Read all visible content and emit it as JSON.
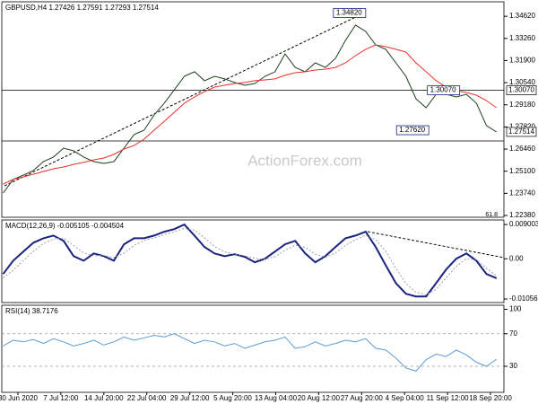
{
  "watermark": "ActionForex.com",
  "chart_data": [
    {
      "type": "line",
      "title": "GBPUSD,H4 1.27426 1.27591 1.27293 1.27514",
      "fib_label": "61.8",
      "xlim": [
        -12,
        362
      ],
      "ylim": [
        1.2227,
        1.3551
      ],
      "yticks": [
        {
          "value": 1.3462,
          "label": "1.34620"
        },
        {
          "value": 1.3326,
          "label": "1.33260"
        },
        {
          "value": 1.319,
          "label": "1.31900"
        },
        {
          "value": 1.3054,
          "label": "1.30540"
        },
        {
          "value": 1.2918,
          "label": "1.29180"
        },
        {
          "value": 1.2782,
          "label": "1.27820"
        },
        {
          "value": 1.2646,
          "label": "1.26460"
        },
        {
          "value": 1.251,
          "label": "1.25100"
        },
        {
          "value": 1.2374,
          "label": "1.23740"
        },
        {
          "value": 1.2238,
          "label": "1.22380"
        }
      ],
      "price_labels": [
        {
          "value": 1.3007,
          "label": "1.30070"
        },
        {
          "value": 1.27514,
          "label": "1.27514"
        }
      ],
      "hlines": [
        1.3007,
        1.2696
      ],
      "annotations": [
        {
          "x": 235,
          "value": 1.3482,
          "label": "1.34820"
        },
        {
          "x": 305,
          "value": 1.3007,
          "label": "1.30070"
        },
        {
          "x": 282,
          "value": 1.2762,
          "label": "1.27620"
        }
      ],
      "x": [
        -11,
        -3.5,
        4,
        11.5,
        19,
        26.5,
        34,
        41.5,
        49,
        56.5,
        64,
        71.5,
        79,
        86.5,
        94,
        101.5,
        109,
        116.5,
        124,
        131.5,
        139,
        146.5,
        154,
        161.5,
        169,
        176.5,
        184,
        191.5,
        199,
        206.5,
        214,
        221.5,
        229,
        236.5,
        244,
        251.5,
        259,
        266.5,
        274,
        281.5,
        289,
        296.5,
        304,
        311.5,
        319,
        326.5,
        334,
        341.5,
        349,
        356.5
      ],
      "series": [
        {
          "color": "#1e3d1e",
          "values": [
            1.2376,
            1.2459,
            1.2486,
            1.2514,
            1.2569,
            1.2597,
            1.2652,
            1.2635,
            1.2597,
            1.2569,
            1.2558,
            1.2569,
            1.2652,
            1.2735,
            1.2762,
            1.2856,
            1.2928,
            1.301,
            1.3093,
            1.3121,
            1.3066,
            1.3093,
            1.3077,
            1.3055,
            1.3038,
            1.3049,
            1.3093,
            1.3121,
            1.3231,
            1.3148,
            1.3121,
            1.3176,
            1.3148,
            1.3203,
            1.3314,
            1.3408,
            1.3369,
            1.3286,
            1.3259,
            1.3176,
            1.3093,
            1.2955,
            1.29,
            1.2983,
            1.2983,
            1.2966,
            1.2983,
            1.2928,
            1.279,
            1.2751
          ]
        },
        {
          "color": "#e8302a",
          "values": [
            1.2431,
            1.2459,
            1.2475,
            1.2492,
            1.2508,
            1.2525,
            1.2536,
            1.2552,
            1.2564,
            1.258,
            1.2591,
            1.2613,
            1.2646,
            1.2668,
            1.2707,
            1.2762,
            1.2817,
            1.2872,
            1.2928,
            1.2966,
            1.2999,
            1.3027,
            1.3038,
            1.3049,
            1.3055,
            1.3066,
            1.3071,
            1.3077,
            1.3099,
            1.3115,
            1.3121,
            1.3132,
            1.3137,
            1.3148,
            1.3176,
            1.322,
            1.3259,
            1.3286,
            1.3275,
            1.3259,
            1.3242,
            1.3176,
            1.3121,
            1.3066,
            1.3027,
            1.3005,
            1.2994,
            1.2977,
            1.2944,
            1.29
          ]
        }
      ]
    },
    {
      "type": "line",
      "title": "MACD(12,26,9) -0.005105 -0.004504",
      "xlim": [
        -12,
        362
      ],
      "ylim": [
        -0.0115,
        0.0102
      ],
      "yticks": [
        0.009003,
        {
          "value": 0,
          "label": "0.00"
        },
        -0.010566
      ],
      "x": [
        -11,
        -3.5,
        4,
        11.5,
        19,
        26.5,
        34,
        41.5,
        49,
        56.5,
        64,
        71.5,
        79,
        86.5,
        94,
        101.5,
        109,
        116.5,
        124,
        131.5,
        139,
        146.5,
        154,
        161.5,
        169,
        176.5,
        184,
        191.5,
        199,
        206.5,
        214,
        221.5,
        229,
        236.5,
        244,
        251.5,
        259,
        266.5,
        274,
        281.5,
        289,
        296.5,
        304,
        311.5,
        319,
        326.5,
        334,
        341.5,
        349,
        356.5
      ],
      "series": [
        {
          "color": "#1a237e",
          "values": [
            -0.004,
            -0.0005,
            0.0019,
            0.0042,
            0.0054,
            0.0061,
            0.0047,
            0.0007,
            -0.0005,
            0.0014,
            0.0007,
            -0.0005,
            0.0038,
            0.0054,
            0.0054,
            0.0061,
            0.0071,
            0.0078,
            0.009,
            0.0061,
            0.0031,
            0.0014,
            0.0007,
            0.0012,
            0.0005,
            -0.0009,
            0,
            0.0019,
            0.0038,
            0.0047,
            0.0014,
            -0.0009,
            0.0007,
            0.0031,
            0.0054,
            0.0061,
            0.0071,
            0.0031,
            -0.0017,
            -0.0064,
            -0.0092,
            -0.0099,
            -0.0099,
            -0.0064,
            -0.0028,
            0,
            0.0014,
            -0.0005,
            -0.004,
            -0.0051
          ]
        },
        {
          "color": "#9e9e9e",
          "values": [
            -0.005,
            -0.003,
            -0.0005,
            0.002,
            0.004,
            0.0052,
            0.0054,
            0.0035,
            0.0015,
            0.0008,
            0.0009,
            0.0003,
            0.0015,
            0.0035,
            0.0048,
            0.0055,
            0.0063,
            0.0071,
            0.008,
            0.0075,
            0.0055,
            0.0032,
            0.0018,
            0.0012,
            0.0008,
            0.0001,
            -0.0002,
            0.0006,
            0.0022,
            0.0036,
            0.003,
            0.0012,
            0.0004,
            0.0015,
            0.0035,
            0.005,
            0.0062,
            0.005,
            0.002,
            -0.0025,
            -0.0065,
            -0.0088,
            -0.0095,
            -0.008,
            -0.005,
            -0.002,
            0,
            -0.0002,
            -0.0025,
            -0.0045
          ]
        }
      ]
    },
    {
      "type": "line",
      "title": "RSI(14) 38.7176",
      "xlim": [
        -12,
        362
      ],
      "ylim": [
        -2,
        105
      ],
      "yticks": [
        100,
        70,
        30
      ],
      "levels": [
        70,
        30
      ],
      "xticks": [
        {
          "value": 0,
          "label": "30 Jun 2020"
        },
        {
          "value": 32,
          "label": "7 Jul 12:00"
        },
        {
          "value": 64,
          "label": "14 Jul 20:00"
        },
        {
          "value": 96,
          "label": "22 Jul 04:00"
        },
        {
          "value": 128,
          "label": "29 Jul 12:00"
        },
        {
          "value": 160,
          "label": "5 Aug 20:00"
        },
        {
          "value": 192,
          "label": "13 Aug 04:00"
        },
        {
          "value": 224,
          "label": "20 Aug 12:00"
        },
        {
          "value": 256,
          "label": "27 Aug 20:00"
        },
        {
          "value": 288,
          "label": "4 Sep 04:00"
        },
        {
          "value": 320,
          "label": "11 Sep 12:00"
        },
        {
          "value": 352,
          "label": "18 Sep 20:00"
        }
      ],
      "x": [
        -11,
        -3.5,
        4,
        11.5,
        19,
        26.5,
        34,
        41.5,
        49,
        56.5,
        64,
        71.5,
        79,
        86.5,
        94,
        101.5,
        109,
        116.5,
        124,
        131.5,
        139,
        146.5,
        154,
        161.5,
        169,
        176.5,
        184,
        191.5,
        199,
        206.5,
        214,
        221.5,
        229,
        236.5,
        244,
        251.5,
        259,
        266.5,
        274,
        281.5,
        289,
        296.5,
        304,
        311.5,
        319,
        326.5,
        334,
        341.5,
        349,
        356.5
      ],
      "series": [
        {
          "color": "#5b9bd5",
          "values": [
            55,
            62,
            60,
            63,
            58,
            64,
            60,
            55,
            58,
            62,
            56,
            60,
            66,
            62,
            65,
            68,
            66,
            70,
            64,
            58,
            62,
            60,
            55,
            58,
            52,
            56,
            60,
            62,
            66,
            52,
            54,
            60,
            55,
            58,
            62,
            60,
            64,
            52,
            50,
            40,
            28,
            24,
            38,
            45,
            42,
            50,
            44,
            35,
            30,
            38.7
          ]
        }
      ]
    }
  ]
}
